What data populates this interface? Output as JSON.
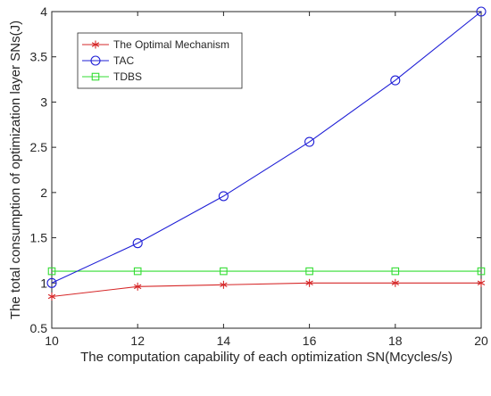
{
  "chart_data": {
    "type": "line",
    "title": "",
    "xlabel": "The computation capability of each optimization SN(Mcycles/s)",
    "ylabel": "The total consumption of optimization layer SNs(J)",
    "xlim": [
      10,
      20
    ],
    "ylim": [
      0.5,
      4
    ],
    "x_ticks": [
      "10",
      "12",
      "14",
      "16",
      "18",
      "20"
    ],
    "y_ticks": [
      "0.5",
      "1",
      "1.5",
      "2",
      "2.5",
      "3",
      "3.5",
      "4"
    ],
    "grid": false,
    "legend_position": "top-left",
    "x": [
      10,
      12,
      14,
      16,
      18,
      20
    ],
    "series": [
      {
        "name": "The Optimal Mechanism",
        "color": "#d62728",
        "marker": "asterisk",
        "values": [
          0.85,
          0.96,
          0.98,
          1.0,
          1.0,
          1.0
        ]
      },
      {
        "name": "TAC",
        "color": "#1f1fd6",
        "marker": "circle",
        "values": [
          1.0,
          1.44,
          1.96,
          2.56,
          3.24,
          4.0
        ]
      },
      {
        "name": "TDBS",
        "color": "#33dd33",
        "marker": "square",
        "values": [
          1.13,
          1.13,
          1.13,
          1.13,
          1.13,
          1.13
        ]
      }
    ]
  }
}
